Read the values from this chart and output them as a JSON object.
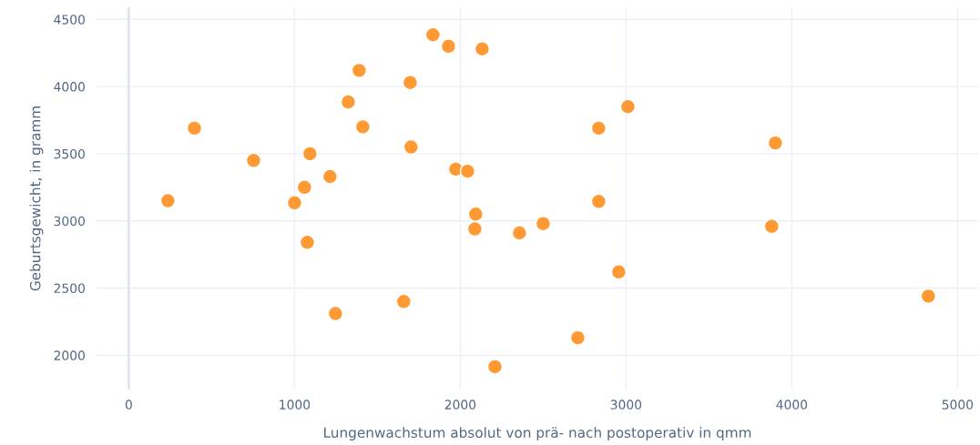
{
  "chart_data": {
    "type": "scatter",
    "xlabel": "Lungenwachstum absolut von prä- nach postoperativ in qmm",
    "ylabel": "Geburtsgewicht, in gramm",
    "xlim": [
      -200,
      5130
    ],
    "ylim": [
      1745,
      4590
    ],
    "xticks": [
      0,
      1000,
      2000,
      3000,
      4000,
      5000
    ],
    "yticks": [
      2000,
      2500,
      3000,
      3500,
      4000,
      4500
    ],
    "grid": true,
    "marker": "circle",
    "series": [
      {
        "color": "#ff9933",
        "x": [
          236,
          396,
          753,
          1000,
          1060,
          1077,
          1093,
          1214,
          1247,
          1324,
          1390,
          1412,
          1659,
          1698,
          1703,
          1835,
          1929,
          1973,
          2044,
          2132,
          2093,
          2088,
          2209,
          2357,
          2500,
          2709,
          2835,
          2835,
          2956,
          3011,
          3879,
          3901,
          4824
        ],
        "values": [
          3150,
          3690,
          3450,
          3135,
          3250,
          2840,
          3500,
          3330,
          2310,
          3885,
          4120,
          3700,
          2400,
          4030,
          3550,
          4385,
          4300,
          3385,
          3370,
          4280,
          3050,
          2940,
          1915,
          2910,
          2980,
          2130,
          3690,
          3145,
          2620,
          3850,
          2960,
          3580,
          2440
        ]
      }
    ]
  }
}
